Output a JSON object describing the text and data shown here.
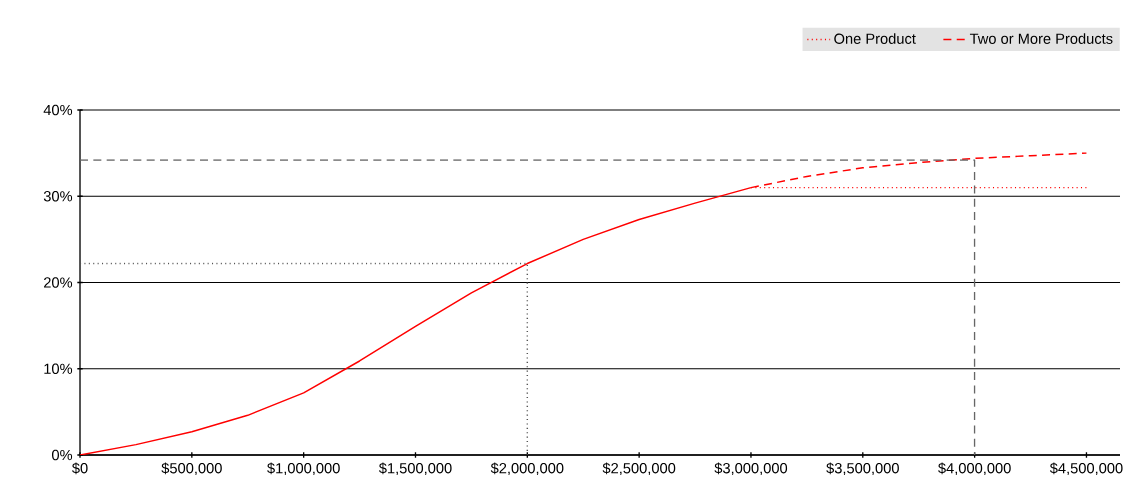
{
  "chart_data": {
    "type": "line",
    "xlim": [
      0,
      4650000
    ],
    "ylim": [
      0,
      40
    ],
    "xticks": [
      {
        "value": 0,
        "label": "$0"
      },
      {
        "value": 500000,
        "label": "$500,000"
      },
      {
        "value": 1000000,
        "label": "$1,000,000"
      },
      {
        "value": 1500000,
        "label": "$1,500,000"
      },
      {
        "value": 2000000,
        "label": "$2,000,000"
      },
      {
        "value": 2500000,
        "label": "$2,500,000"
      },
      {
        "value": 3000000,
        "label": "$3,000,000"
      },
      {
        "value": 3500000,
        "label": "$3,500,000"
      },
      {
        "value": 4000000,
        "label": "$4,000,000"
      },
      {
        "value": 4500000,
        "label": "$4,500,000"
      }
    ],
    "yticks": [
      {
        "value": 0,
        "label": "0%"
      },
      {
        "value": 10,
        "label": "10%"
      },
      {
        "value": 20,
        "label": "20%"
      },
      {
        "value": 30,
        "label": "30%"
      },
      {
        "value": 40,
        "label": "40%"
      }
    ],
    "grid": "y",
    "legend": "top right",
    "series": [
      {
        "color": "#ff0000",
        "line_style": "solid",
        "x": [
          0,
          250000,
          500000,
          750000,
          1000000,
          1250000,
          1500000,
          1750000,
          2000000,
          2250000,
          2500000,
          2750000,
          3000000
        ],
        "values": [
          0,
          1.2,
          2.7,
          4.6,
          7.2,
          10.9,
          14.9,
          18.8,
          22.2,
          25.0,
          27.3,
          29.2,
          31.0
        ]
      },
      {
        "name": "One Product",
        "color": "#ff0000",
        "line_style": "dotted",
        "x": [
          3000000,
          4500000
        ],
        "values": [
          31.0,
          31.0
        ]
      },
      {
        "name": "Two or More Products",
        "color": "#ff0000",
        "line_style": "dashed",
        "x": [
          3000000,
          3250000,
          3500000,
          3750000,
          4000000,
          4250000,
          4500000
        ],
        "values": [
          31.0,
          32.3,
          33.3,
          33.9,
          34.4,
          34.7,
          35.0
        ]
      },
      {
        "color": "#555555",
        "line_style": "dotted",
        "x": [
          0,
          2000000,
          2000000
        ],
        "values": [
          22.2,
          22.2,
          0
        ]
      },
      {
        "color": "#666666",
        "line_style": "dashed",
        "x": [
          0,
          4000000,
          4000000
        ],
        "values": [
          34.2,
          34.2,
          0
        ]
      }
    ]
  }
}
